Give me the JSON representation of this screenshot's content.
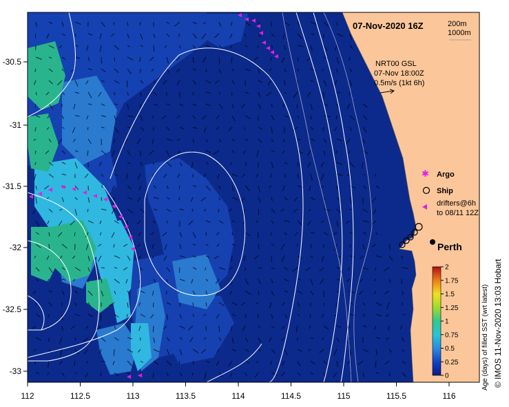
{
  "title": "07-Nov-2020 16Z",
  "depth_legend": [
    "200m",
    "1000m"
  ],
  "current_info": {
    "line1": "NRT00 GSL",
    "line2": "07-Nov 18:00Z",
    "line3": "0.5m/s (1kt 6h)"
  },
  "legend": {
    "argo": "Argo",
    "ship": "Ship",
    "drifters_line1": "drifters@6h",
    "drifters_line2": "to 08/11 12Z"
  },
  "place_label": "Perth",
  "x_ticks": [
    "112",
    "112.5",
    "113",
    "113.5",
    "114",
    "114.5",
    "115",
    "115.5",
    "116"
  ],
  "y_ticks": [
    "-30.5",
    "-31",
    "-31.5",
    "-32",
    "-32.5",
    "-33"
  ],
  "colorbar": {
    "label": "Age (days) of filled SST (wrt latest)",
    "ticks": [
      "0",
      "0.25",
      "0.5",
      "0.75",
      "1",
      "1.25",
      "1.5",
      "1.75",
      "2"
    ],
    "range": [
      0,
      2
    ]
  },
  "credit": "© IMOS 11-Nov-2020 13:03 Hobart",
  "colors": {
    "ocean": "#0c2a8c",
    "land": "#fbc79a",
    "patch_light": "#2a88d8",
    "patch_cyan": "#32c0e0",
    "patch_green": "#2ab890",
    "drifter": "#e020e0"
  }
}
